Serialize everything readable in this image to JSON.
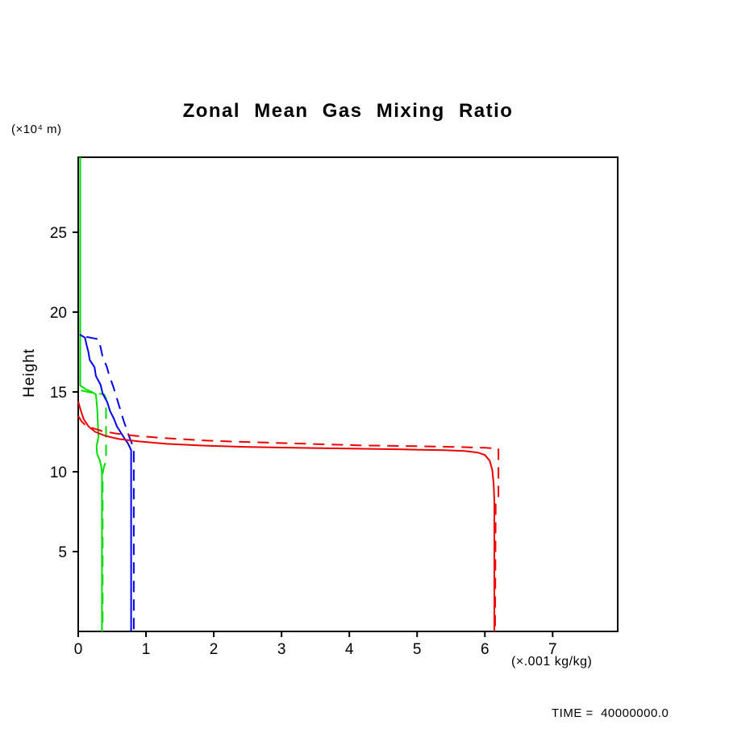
{
  "texts": {
    "title": "Zonal Mean Gas Mixing Ratio",
    "y_axis_units": "(×10⁴ m)",
    "y_axis_label": "Height",
    "x_axis_units": "(×.001 kg/kg)",
    "time_label": "TIME =  40000000.0"
  },
  "colors": {
    "background": "#ffffff",
    "axis": "#000000",
    "red": "#ee0000",
    "blue": "#0000ee",
    "green": "#00dd00"
  },
  "chart_data": {
    "type": "line",
    "title": "Zonal Mean Gas Mixing Ratio",
    "xlabel": "(×.001 kg/kg)",
    "ylabel": "Height (×10⁴ m)",
    "xlim": [
      0,
      7.96
    ],
    "ylim": [
      0,
      29.7
    ],
    "xticks": [
      0,
      1,
      2,
      3,
      4,
      5,
      6,
      7
    ],
    "yticks": [
      5,
      10,
      15,
      20,
      25
    ],
    "grid": false,
    "legend": "none",
    "annotation": "TIME =  40000000.0",
    "series": [
      {
        "name": "green-solid",
        "color": "#00dd00",
        "dash": "solid",
        "points": [
          [
            0.03,
            29.7
          ],
          [
            0.03,
            15.4
          ],
          [
            0.1,
            15.2
          ],
          [
            0.2,
            15.0
          ],
          [
            0.26,
            14.85
          ],
          [
            0.28,
            14.0
          ],
          [
            0.29,
            13.0
          ],
          [
            0.3,
            12.2
          ],
          [
            0.27,
            11.6
          ],
          [
            0.28,
            11.1
          ],
          [
            0.32,
            10.7
          ],
          [
            0.34,
            10.3
          ],
          [
            0.35,
            9.9
          ],
          [
            0.35,
            0
          ]
        ]
      },
      {
        "name": "green-dashed",
        "color": "#00dd00",
        "dash": "dashed",
        "points": [
          [
            0.04,
            15.1
          ],
          [
            0.2,
            14.95
          ],
          [
            0.38,
            14.85
          ],
          [
            0.41,
            14.6
          ],
          [
            0.41,
            10.7
          ],
          [
            0.38,
            10.3
          ],
          [
            0.36,
            9.9
          ],
          [
            0.36,
            0
          ]
        ]
      },
      {
        "name": "blue-solid",
        "color": "#0000ee",
        "dash": "solid",
        "points": [
          [
            0.02,
            18.6
          ],
          [
            0.1,
            18.4
          ],
          [
            0.12,
            18.0
          ],
          [
            0.15,
            17.5
          ],
          [
            0.17,
            17.0
          ],
          [
            0.24,
            16.55
          ],
          [
            0.26,
            16.0
          ],
          [
            0.33,
            15.45
          ],
          [
            0.36,
            14.9
          ],
          [
            0.43,
            14.35
          ],
          [
            0.47,
            13.8
          ],
          [
            0.53,
            13.3
          ],
          [
            0.57,
            12.85
          ],
          [
            0.63,
            12.45
          ],
          [
            0.68,
            12.1
          ],
          [
            0.73,
            11.8
          ],
          [
            0.76,
            11.55
          ],
          [
            0.78,
            11.35
          ],
          [
            0.78,
            0
          ]
        ]
      },
      {
        "name": "blue-dashed",
        "color": "#0000ee",
        "dash": "dashed",
        "points": [
          [
            0.12,
            18.45
          ],
          [
            0.3,
            18.3
          ],
          [
            0.33,
            17.8
          ],
          [
            0.36,
            17.2
          ],
          [
            0.42,
            16.6
          ],
          [
            0.46,
            16.0
          ],
          [
            0.52,
            15.3
          ],
          [
            0.57,
            14.6
          ],
          [
            0.62,
            13.9
          ],
          [
            0.67,
            13.2
          ],
          [
            0.72,
            12.6
          ],
          [
            0.76,
            12.1
          ],
          [
            0.8,
            11.7
          ],
          [
            0.82,
            11.4
          ],
          [
            0.82,
            0
          ]
        ]
      },
      {
        "name": "red-solid",
        "color": "#ee0000",
        "dash": "solid",
        "points": [
          [
            0,
            14.4
          ],
          [
            0.04,
            13.8
          ],
          [
            0.08,
            13.3
          ],
          [
            0.15,
            12.85
          ],
          [
            0.25,
            12.5
          ],
          [
            0.4,
            12.25
          ],
          [
            0.6,
            12.05
          ],
          [
            0.9,
            11.9
          ],
          [
            1.3,
            11.75
          ],
          [
            1.8,
            11.65
          ],
          [
            2.5,
            11.55
          ],
          [
            3.2,
            11.5
          ],
          [
            4.0,
            11.45
          ],
          [
            4.8,
            11.4
          ],
          [
            5.4,
            11.35
          ],
          [
            5.7,
            11.3
          ],
          [
            5.9,
            11.2
          ],
          [
            6.0,
            11.05
          ],
          [
            6.07,
            10.7
          ],
          [
            6.11,
            10.1
          ],
          [
            6.13,
            9.2
          ],
          [
            6.14,
            8.2
          ],
          [
            6.14,
            0
          ]
        ]
      },
      {
        "name": "red-dashed",
        "color": "#ee0000",
        "dash": "dashed",
        "points": [
          [
            0,
            13.5
          ],
          [
            0.05,
            13.15
          ],
          [
            0.1,
            12.95
          ],
          [
            0.2,
            12.75
          ],
          [
            0.35,
            12.55
          ],
          [
            0.55,
            12.4
          ],
          [
            0.85,
            12.25
          ],
          [
            1.3,
            12.1
          ],
          [
            1.9,
            11.95
          ],
          [
            2.6,
            11.85
          ],
          [
            3.4,
            11.75
          ],
          [
            4.2,
            11.65
          ],
          [
            5.0,
            11.6
          ],
          [
            5.6,
            11.55
          ],
          [
            6.0,
            11.5
          ],
          [
            6.2,
            11.45
          ],
          [
            6.2,
            8.3
          ],
          [
            6.16,
            8.0
          ],
          [
            6.15,
            0
          ]
        ]
      }
    ]
  }
}
